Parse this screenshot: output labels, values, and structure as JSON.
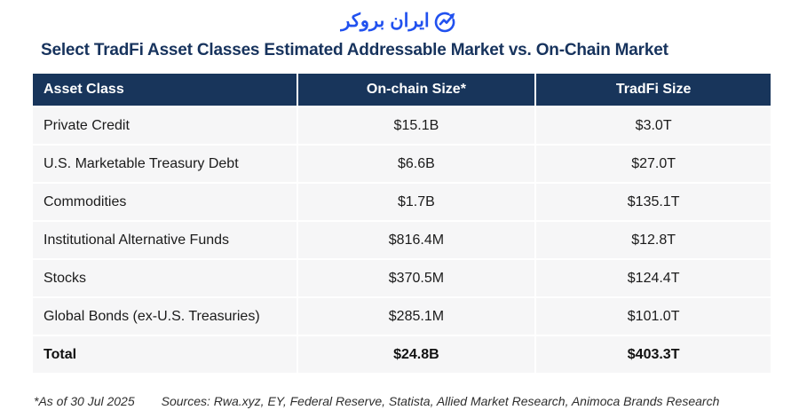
{
  "logo": {
    "brand_text": "ایران بروکر",
    "icon": "chart-arrow-circle-icon",
    "color": "#2151ef"
  },
  "title": "Select TradFi Asset Classes Estimated Addressable Market vs. On-Chain Market",
  "table": {
    "columns": [
      "Asset Class",
      "On-chain Size*",
      "TradFi Size"
    ],
    "rows": [
      [
        "Private Credit",
        "$15.1B",
        "$3.0T"
      ],
      [
        "U.S. Marketable Treasury Debt",
        "$6.6B",
        "$27.0T"
      ],
      [
        "Commodities",
        "$1.7B",
        "$135.1T"
      ],
      [
        "Institutional Alternative Funds",
        "$816.4M",
        "$12.8T"
      ],
      [
        "Stocks",
        "$370.5M",
        "$124.4T"
      ],
      [
        "Global Bonds (ex-U.S. Treasuries)",
        "$285.1M",
        "$101.0T"
      ]
    ],
    "total_row": [
      "Total",
      "$24.8B",
      "$403.3T"
    ]
  },
  "footer": {
    "as_of": "*As of 30 Jul 2025",
    "sources": "Sources: Rwa.xyz, EY, Federal Reserve, Statista, Allied Market Research, Animoca Brands Research"
  },
  "colors": {
    "header_bg": "#18355b",
    "title_text": "#17335d",
    "row_bg": "#f6f6f7",
    "cell_text": "#1b1b1b",
    "logo_blue": "#2151ef"
  },
  "chart_data": {
    "type": "table",
    "title": "Select TradFi Asset Classes Estimated Addressable Market vs. On-Chain Market",
    "columns": [
      "Asset Class",
      "On-chain Size*",
      "TradFi Size"
    ],
    "rows": [
      {
        "asset_class": "Private Credit",
        "on_chain_size": "$15.1B",
        "tradfi_size": "$3.0T"
      },
      {
        "asset_class": "U.S. Marketable Treasury Debt",
        "on_chain_size": "$6.6B",
        "tradfi_size": "$27.0T"
      },
      {
        "asset_class": "Commodities",
        "on_chain_size": "$1.7B",
        "tradfi_size": "$135.1T"
      },
      {
        "asset_class": "Institutional Alternative Funds",
        "on_chain_size": "$816.4M",
        "tradfi_size": "$12.8T"
      },
      {
        "asset_class": "Stocks",
        "on_chain_size": "$370.5M",
        "tradfi_size": "$124.4T"
      },
      {
        "asset_class": "Global Bonds (ex-U.S. Treasuries)",
        "on_chain_size": "$285.1M",
        "tradfi_size": "$101.0T"
      },
      {
        "asset_class": "Total",
        "on_chain_size": "$24.8B",
        "tradfi_size": "$403.3T"
      }
    ],
    "footnote": "*As of 30 Jul 2025",
    "sources": "Sources: Rwa.xyz, EY, Federal Reserve, Statista, Allied Market Research, Animoca Brands Research"
  }
}
